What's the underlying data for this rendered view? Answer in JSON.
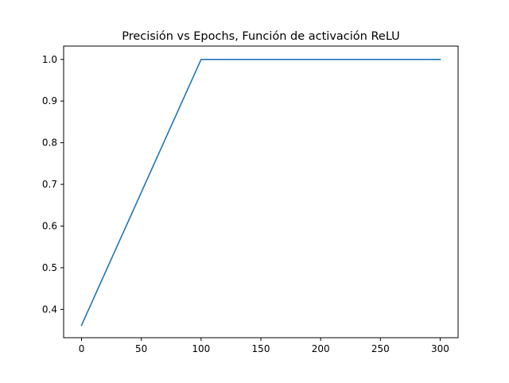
{
  "chart_data": {
    "type": "line",
    "title": "Precisión vs Epochs, Función de activación ReLU",
    "xlabel": "",
    "ylabel": "",
    "xlim": [
      -15,
      315
    ],
    "ylim": [
      0.332,
      1.032
    ],
    "xticks": [
      0,
      50,
      100,
      150,
      200,
      250,
      300
    ],
    "xtick_labels": [
      "0",
      "50",
      "100",
      "150",
      "200",
      "250",
      "300"
    ],
    "yticks": [
      0.4,
      0.5,
      0.6,
      0.7,
      0.8,
      0.9,
      1.0
    ],
    "ytick_labels": [
      "0.4",
      "0.5",
      "0.6",
      "0.7",
      "0.8",
      "0.9",
      "1.0"
    ],
    "grid": false,
    "legend": "none",
    "series": [
      {
        "color": "#1f77b4",
        "x": [
          0,
          100,
          300
        ],
        "y": [
          0.362,
          1.0,
          1.0
        ]
      }
    ]
  }
}
